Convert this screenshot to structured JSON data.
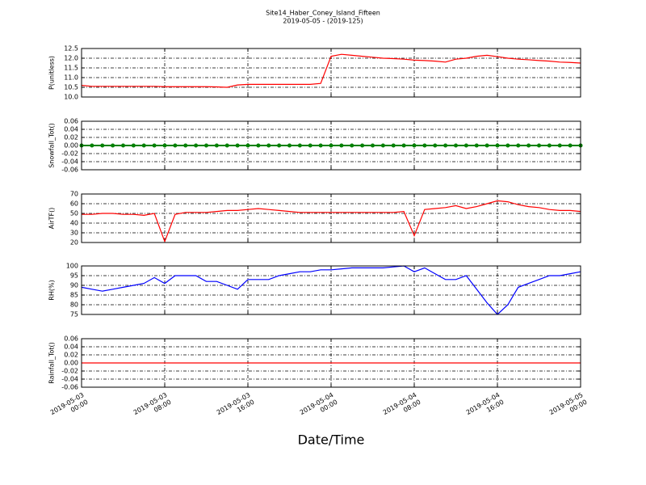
{
  "figure": {
    "title": "Site14_Haber_Coney_Island_Fifteen",
    "subtitle": "2019-05-05 - (2019-125)",
    "xlabel": "Date/Time",
    "x": [
      "2019-05-03 00:00",
      "2019-05-03 01:00",
      "2019-05-03 02:00",
      "2019-05-03 03:00",
      "2019-05-03 04:00",
      "2019-05-03 05:00",
      "2019-05-03 06:00",
      "2019-05-03 07:00",
      "2019-05-03 08:00",
      "2019-05-03 09:00",
      "2019-05-03 10:00",
      "2019-05-03 11:00",
      "2019-05-03 12:00",
      "2019-05-03 13:00",
      "2019-05-03 14:00",
      "2019-05-03 15:00",
      "2019-05-03 16:00",
      "2019-05-03 17:00",
      "2019-05-03 18:00",
      "2019-05-03 19:00",
      "2019-05-03 20:00",
      "2019-05-03 21:00",
      "2019-05-03 22:00",
      "2019-05-03 23:00",
      "2019-05-04 00:00",
      "2019-05-04 01:00",
      "2019-05-04 02:00",
      "2019-05-04 03:00",
      "2019-05-04 04:00",
      "2019-05-04 05:00",
      "2019-05-04 06:00",
      "2019-05-04 07:00",
      "2019-05-04 08:00",
      "2019-05-04 09:00",
      "2019-05-04 10:00",
      "2019-05-04 11:00",
      "2019-05-04 12:00",
      "2019-05-04 13:00",
      "2019-05-04 14:00",
      "2019-05-04 15:00",
      "2019-05-04 16:00",
      "2019-05-04 17:00",
      "2019-05-04 18:00",
      "2019-05-04 19:00",
      "2019-05-04 20:00",
      "2019-05-04 21:00",
      "2019-05-04 22:00",
      "2019-05-04 23:00",
      "2019-05-05 00:00"
    ],
    "xlim": [
      "2019-05-03 00:00",
      "2019-05-05 00:00"
    ],
    "xticks": [
      {
        "value": "2019-05-03 00:00",
        "label": "2019-05-03\n00:00"
      },
      {
        "value": "2019-05-03 08:00",
        "label": "2019-05-03\n08:00"
      },
      {
        "value": "2019-05-03 16:00",
        "label": "2019-05-03\n16:00"
      },
      {
        "value": "2019-05-04 00:00",
        "label": "2019-05-04\n00:00"
      },
      {
        "value": "2019-05-04 08:00",
        "label": "2019-05-04\n08:00"
      },
      {
        "value": "2019-05-04 16:00",
        "label": "2019-05-04\n16:00"
      },
      {
        "value": "2019-05-05 00:00",
        "label": "2019-05-05\n00:00"
      }
    ]
  },
  "chart_data": [
    {
      "type": "line",
      "ylabel": "P(unitless)",
      "ylim": [
        10,
        12.5
      ],
      "grid": true,
      "yticks": [
        {
          "value": 10,
          "label": "10.0"
        },
        {
          "value": 10.5,
          "label": "10.5"
        },
        {
          "value": 11,
          "label": "11.0"
        },
        {
          "value": 11.5,
          "label": "11.5"
        },
        {
          "value": 12,
          "label": "12.0"
        },
        {
          "value": 12.5,
          "label": "12.5"
        }
      ],
      "series": [
        {
          "color": "#ff0000",
          "values": [
            10.6,
            10.55,
            10.55,
            10.55,
            10.55,
            10.55,
            10.55,
            10.55,
            10.53,
            10.53,
            10.53,
            10.53,
            10.53,
            10.52,
            10.5,
            10.62,
            10.65,
            10.65,
            10.65,
            10.65,
            10.65,
            10.65,
            10.65,
            10.7,
            12.1,
            12.2,
            12.15,
            12.1,
            12.05,
            12.0,
            11.98,
            11.95,
            11.9,
            11.88,
            11.85,
            11.8,
            11.95,
            12.0,
            12.1,
            12.15,
            12.08,
            12.0,
            11.95,
            11.92,
            11.88,
            11.85,
            11.8,
            11.78,
            11.75
          ]
        }
      ]
    },
    {
      "type": "line",
      "ylabel": "Snowfall_Tot()",
      "ylim": [
        -0.06,
        0.06
      ],
      "grid": true,
      "yticks": [
        -0.06,
        -0.04,
        -0.02,
        {
          "value": 0,
          "label": "0.00"
        },
        0.02,
        0.04,
        0.06
      ],
      "series": [
        {
          "color": "#008000",
          "markers": true,
          "values": [
            0,
            0,
            0,
            0,
            0,
            0,
            0,
            0,
            0,
            0,
            0,
            0,
            0,
            0,
            0,
            0,
            0,
            0,
            0,
            0,
            0,
            0,
            0,
            0,
            0,
            0,
            0,
            0,
            0,
            0,
            0,
            0,
            0,
            0,
            0,
            0,
            0,
            0,
            0,
            0,
            0,
            0,
            0,
            0,
            0,
            0,
            0,
            0,
            0
          ]
        }
      ]
    },
    {
      "type": "line",
      "ylabel": "AirTF()",
      "ylim": [
        20,
        70
      ],
      "grid": true,
      "yticks": [
        20,
        30,
        40,
        50,
        60,
        70
      ],
      "series": [
        {
          "color": "#ff0000",
          "values": [
            49,
            49,
            50,
            50,
            49,
            49,
            48,
            50,
            21,
            49,
            51,
            51,
            51,
            52,
            53,
            53,
            54,
            55,
            54,
            53,
            52,
            51,
            51,
            51,
            51,
            51,
            51,
            51,
            51,
            51,
            51,
            52,
            27,
            54,
            55,
            56,
            58,
            55,
            57,
            60,
            63,
            62,
            59,
            57,
            56,
            54,
            53,
            53,
            52
          ]
        }
      ]
    },
    {
      "type": "line",
      "ylabel": "RH(%)",
      "ylim": [
        75,
        100
      ],
      "grid": true,
      "yticks": [
        75,
        80,
        85,
        90,
        95,
        100
      ],
      "series": [
        {
          "color": "#0000ff",
          "values": [
            89,
            88,
            87,
            88,
            89,
            90,
            91,
            94,
            91,
            95,
            95,
            95,
            92,
            92,
            90,
            88,
            93,
            93,
            93,
            95,
            96,
            97,
            97,
            98,
            98,
            98.5,
            99,
            99,
            99,
            99,
            99.5,
            100,
            97,
            99,
            96,
            93,
            93,
            95,
            88,
            81,
            75,
            80,
            89,
            91,
            93,
            95,
            95,
            96,
            97
          ]
        }
      ]
    },
    {
      "type": "line",
      "ylabel": "Rainfall_Tot()",
      "ylim": [
        -0.06,
        0.06
      ],
      "grid": true,
      "yticks": [
        -0.06,
        -0.04,
        -0.02,
        {
          "value": 0,
          "label": "0.00"
        },
        0.02,
        0.04,
        0.06
      ],
      "series": [
        {
          "color": "#ff0000",
          "values": [
            0,
            0,
            0,
            0,
            0,
            0,
            0,
            0,
            0,
            0,
            0,
            0,
            0,
            0,
            0,
            0,
            0,
            0,
            0,
            0,
            0,
            0,
            0,
            0,
            0,
            0,
            0,
            0,
            0,
            0,
            0,
            0,
            0,
            0,
            0,
            0,
            0,
            0,
            0,
            0,
            0,
            0,
            0,
            0,
            0,
            0,
            0,
            0,
            0
          ]
        }
      ]
    }
  ]
}
